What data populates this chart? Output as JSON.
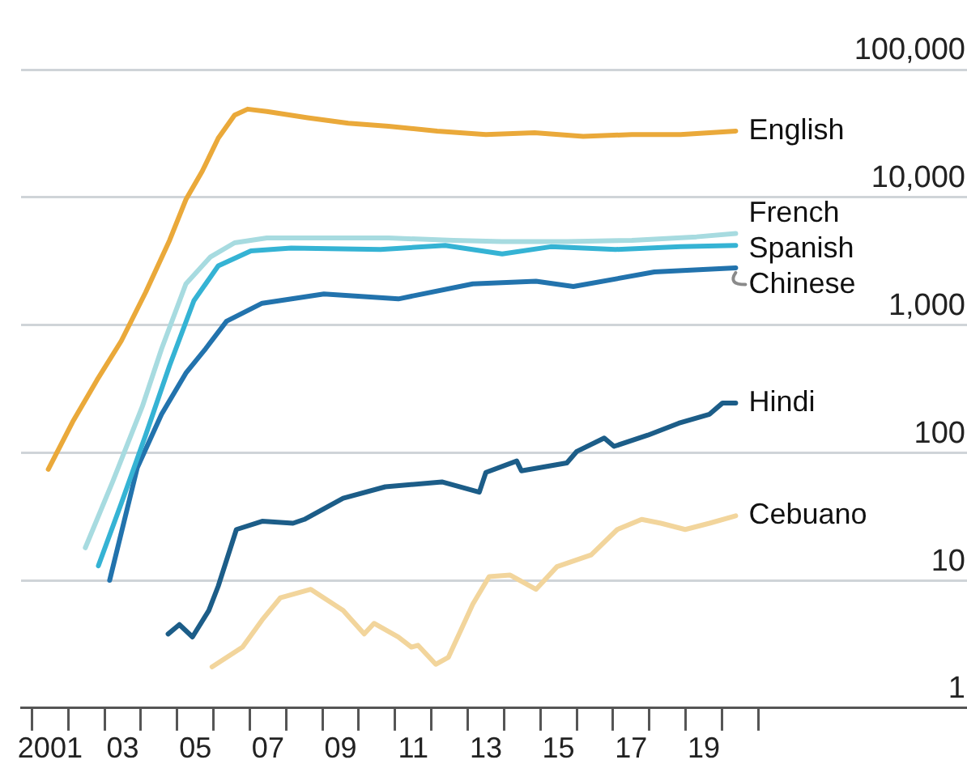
{
  "chart_data": {
    "type": "line",
    "log": true,
    "grid": "y",
    "marker": "none",
    "line_style": "solid",
    "xlim": [
      2000.2,
      2026.25
    ],
    "xticks": [
      {
        "value": 2000.5,
        "label": null
      },
      {
        "value": 2001,
        "label": "2001"
      },
      {
        "value": 2001.5,
        "label": null
      },
      {
        "value": 2002.5,
        "label": null
      },
      {
        "value": 2003,
        "label": "03"
      },
      {
        "value": 2003.5,
        "label": null
      },
      {
        "value": 2004.5,
        "label": null
      },
      {
        "value": 2005,
        "label": "05"
      },
      {
        "value": 2005.5,
        "label": null
      },
      {
        "value": 2006.5,
        "label": null
      },
      {
        "value": 2007,
        "label": "07"
      },
      {
        "value": 2007.5,
        "label": null
      },
      {
        "value": 2008.5,
        "label": null
      },
      {
        "value": 2009,
        "label": "09"
      },
      {
        "value": 2009.5,
        "label": null
      },
      {
        "value": 2010.5,
        "label": null
      },
      {
        "value": 2011,
        "label": "11"
      },
      {
        "value": 2011.5,
        "label": null
      },
      {
        "value": 2012.5,
        "label": null
      },
      {
        "value": 2013,
        "label": "13"
      },
      {
        "value": 2013.5,
        "label": null
      },
      {
        "value": 2014.5,
        "label": null
      },
      {
        "value": 2015,
        "label": "15"
      },
      {
        "value": 2015.5,
        "label": null
      },
      {
        "value": 2016.5,
        "label": null
      },
      {
        "value": 2017,
        "label": "17"
      },
      {
        "value": 2017.5,
        "label": null
      },
      {
        "value": 2018.5,
        "label": null
      },
      {
        "value": 2019,
        "label": "19"
      },
      {
        "value": 2019.5,
        "label": null
      },
      {
        "value": 2020.5,
        "label": null
      }
    ],
    "ylim": [
      1,
      100000
    ],
    "yticks": [
      1,
      10,
      100,
      {
        "value": 1000,
        "label": "1,000"
      },
      {
        "value": 10000,
        "label": "10,000"
      },
      {
        "value": 100000,
        "label": "100,000"
      }
    ],
    "series": [
      {
        "name": "English",
        "color": "#eaa93a",
        "x": [
          2000.95,
          2001.62,
          2002.29,
          2002.96,
          2003.63,
          2004.29,
          2004.74,
          2005.19,
          2005.63,
          2006.08,
          2006.44,
          2006.97,
          2008.09,
          2009.21,
          2010.32,
          2011.66,
          2013,
          2014.34,
          2015.68,
          2017.02,
          2018.36,
          2019.88
        ],
        "values": [
          74,
          174,
          370,
          750,
          1800,
          4600,
          9600,
          16000,
          29000,
          44000,
          49000,
          47000,
          42000,
          38000,
          36000,
          33000,
          31000,
          32000,
          30000,
          31000,
          31000,
          33000
        ]
      },
      {
        "name": "French",
        "color": "#a7dbe0",
        "x": [
          2001.97,
          2002.73,
          2003.54,
          2004.07,
          2004.74,
          2005.41,
          2006.08,
          2006.97,
          2008.54,
          2010.32,
          2012.11,
          2013.45,
          2015.23,
          2017.02,
          2018.8,
          2019.88
        ],
        "values": [
          18,
          60,
          230,
          650,
          2100,
          3400,
          4400,
          4800,
          4800,
          4800,
          4600,
          4500,
          4500,
          4600,
          4900,
          5200
        ]
      },
      {
        "name": "Spanish",
        "color": "#35b3d4",
        "x": [
          2002.33,
          2002.96,
          2003.63,
          2004.29,
          2004.96,
          2005.63,
          2006.53,
          2007.64,
          2010.1,
          2011.88,
          2013.45,
          2014.79,
          2016.57,
          2018.36,
          2019.88
        ],
        "values": [
          13,
          40,
          137,
          480,
          1550,
          2900,
          3800,
          4000,
          3900,
          4200,
          3600,
          4100,
          3900,
          4100,
          4200
        ]
      },
      {
        "name": "Chinese",
        "color": "#2273ad",
        "x": [
          2002.64,
          2003.4,
          2004.07,
          2004.74,
          2005.28,
          2005.86,
          2006.84,
          2008.54,
          2010.59,
          2012.64,
          2014.38,
          2015.41,
          2017.64,
          2019.88
        ],
        "values": [
          10,
          76,
          200,
          420,
          650,
          1070,
          1480,
          1750,
          1600,
          2100,
          2200,
          2000,
          2600,
          2800
        ]
      },
      {
        "name": "Hindi",
        "color": "#1c5d88",
        "x": [
          2004.25,
          2004.56,
          2004.92,
          2005.37,
          2005.63,
          2006.13,
          2006.84,
          2007.69,
          2008,
          2009.07,
          2010.23,
          2011.79,
          2012.82,
          2013,
          2013.85,
          2013.98,
          2015.23,
          2015.5,
          2016.26,
          2016.53,
          2017.46,
          2018.31,
          2019.16,
          2019.52,
          2019.88
        ],
        "values": [
          3.8,
          4.5,
          3.6,
          5.8,
          9,
          25,
          29,
          28,
          30,
          44,
          54,
          59,
          49,
          70,
          86,
          72,
          83,
          102,
          130,
          112,
          137,
          170,
          200,
          245,
          245
        ]
      },
      {
        "name": "Cebuano",
        "color": "#f2d59c",
        "x": [
          2005.46,
          2006.3,
          2006.84,
          2007.34,
          2008.18,
          2009.07,
          2009.65,
          2009.92,
          2010.59,
          2010.95,
          2011.13,
          2011.62,
          2011.97,
          2012.64,
          2013.09,
          2013.67,
          2014.38,
          2014.96,
          2015.9,
          2016.62,
          2017.29,
          2017.82,
          2018.49,
          2019.16,
          2019.88
        ],
        "values": [
          2.1,
          3,
          4.9,
          7.3,
          8.5,
          5.8,
          3.8,
          4.6,
          3.6,
          3,
          3.1,
          2.2,
          2.5,
          6.5,
          10.7,
          11,
          8.5,
          12.8,
          15.8,
          25,
          30,
          28,
          25,
          28,
          32
        ]
      }
    ]
  }
}
